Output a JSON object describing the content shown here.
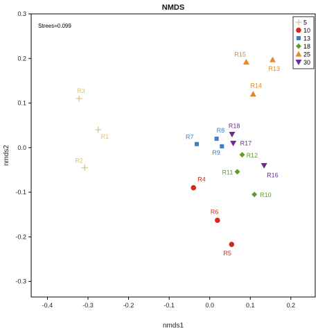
{
  "chart_data": {
    "type": "scatter",
    "title": "NMDS",
    "xlabel": "nmds1",
    "ylabel": "nmds2",
    "xlim": [
      -0.44,
      0.26
    ],
    "ylim": [
      -0.335,
      0.3
    ],
    "xticks": [
      -0.4,
      -0.3,
      -0.2,
      -0.1,
      0.0,
      0.1,
      0.2
    ],
    "xtick_labels": [
      "-0.4",
      "-0.3",
      "-0.2",
      "-0.1",
      "0.0",
      "0.1",
      "0.2"
    ],
    "yticks": [
      -0.3,
      -0.2,
      -0.1,
      0.0,
      0.1,
      0.2,
      0.3
    ],
    "ytick_labels": [
      "-0.3",
      "-0.2",
      "-0.1",
      "0.0",
      "0.1",
      "0.2",
      "0.3"
    ],
    "annotation": "Strees=0.099",
    "grid": false,
    "legend_position": "top-right",
    "series": [
      {
        "name": "5",
        "color": "#d8c27a",
        "marker": "plus",
        "points": [
          {
            "label": "R1",
            "x": -0.275,
            "y": 0.04
          },
          {
            "label": "R2",
            "x": -0.308,
            "y": -0.045
          },
          {
            "label": "R3",
            "x": -0.322,
            "y": 0.11
          }
        ]
      },
      {
        "name": "10",
        "color": "#d42a1c",
        "marker": "circle",
        "points": [
          {
            "label": "R4",
            "x": -0.04,
            "y": -0.09
          },
          {
            "label": "R5",
            "x": 0.054,
            "y": -0.217
          },
          {
            "label": "R6",
            "x": 0.019,
            "y": -0.163
          }
        ]
      },
      {
        "name": "13",
        "color": "#3f7fc0",
        "marker": "square",
        "points": [
          {
            "label": "R7",
            "x": -0.032,
            "y": 0.008
          },
          {
            "label": "R8",
            "x": 0.017,
            "y": 0.02
          },
          {
            "label": "R9",
            "x": 0.03,
            "y": 0.003
          }
        ]
      },
      {
        "name": "18",
        "color": "#5f9a2a",
        "marker": "diamond",
        "points": [
          {
            "label": "R10",
            "x": 0.11,
            "y": -0.105
          },
          {
            "label": "R11",
            "x": 0.068,
            "y": -0.054
          },
          {
            "label": "R12",
            "x": 0.08,
            "y": -0.016
          }
        ]
      },
      {
        "name": "25",
        "color": "#e08a2a",
        "marker": "triangle-up",
        "points": [
          {
            "label": "R13",
            "x": 0.155,
            "y": 0.197
          },
          {
            "label": "R14",
            "x": 0.107,
            "y": 0.12
          },
          {
            "label": "R15",
            "x": 0.09,
            "y": 0.192
          }
        ]
      },
      {
        "name": "30",
        "color": "#6e2c8a",
        "marker": "triangle-down",
        "points": [
          {
            "label": "R16",
            "x": 0.134,
            "y": -0.04
          },
          {
            "label": "R17",
            "x": 0.058,
            "y": 0.01
          },
          {
            "label": "R18",
            "x": 0.055,
            "y": 0.03
          }
        ]
      }
    ]
  }
}
